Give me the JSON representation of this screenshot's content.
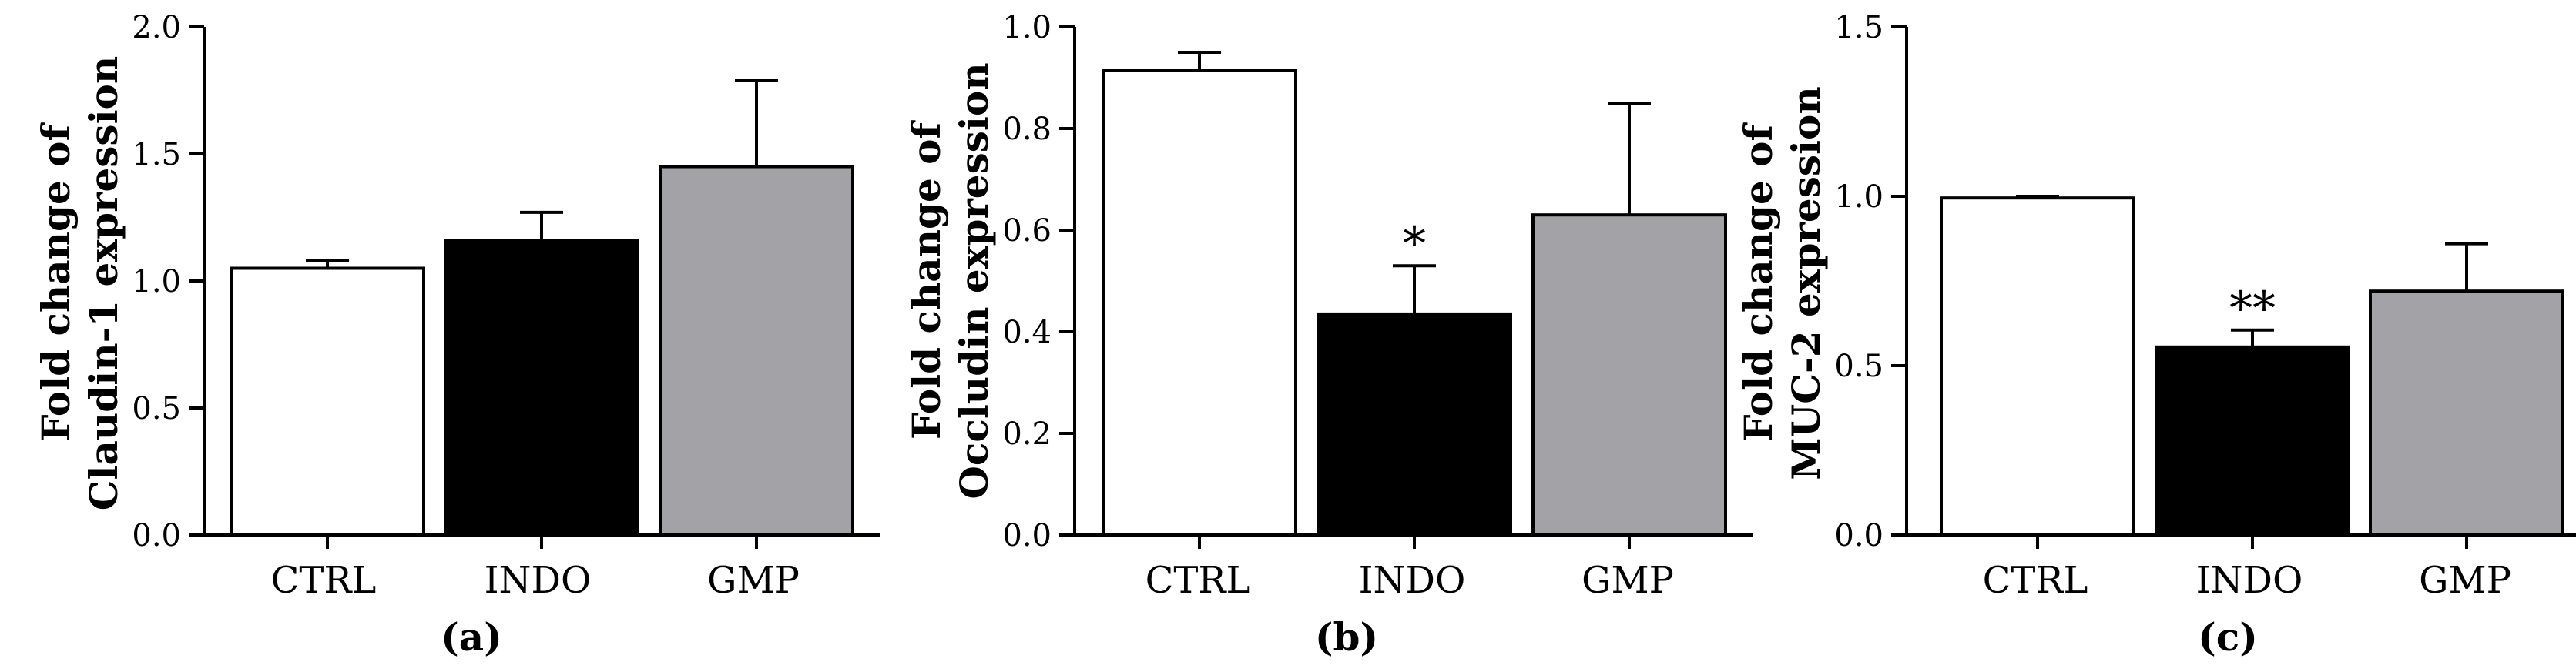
{
  "chart_data": [
    {
      "type": "bar",
      "panel": "(a)",
      "ylabel_lines": [
        "Fold change of",
        "Claudin-1 expression"
      ],
      "categories": [
        "CTRL",
        "INDO",
        "GMP"
      ],
      "values": [
        1.05,
        1.16,
        1.45
      ],
      "errors": [
        0.03,
        0.11,
        0.34
      ],
      "colors": [
        "#ffffff",
        "#000000",
        "#a3a2a7"
      ],
      "significance": [
        "",
        "",
        ""
      ],
      "ylim": [
        0,
        2.0
      ],
      "yticks": [
        "0.0",
        "0.5",
        "1.0",
        "1.5",
        "2.0"
      ]
    },
    {
      "type": "bar",
      "panel": "(b)",
      "ylabel_lines": [
        "Fold change of",
        "Occludin expression"
      ],
      "categories": [
        "CTRL",
        "INDO",
        "GMP"
      ],
      "values": [
        0.915,
        0.435,
        0.63
      ],
      "errors": [
        0.035,
        0.095,
        0.22
      ],
      "colors": [
        "#ffffff",
        "#000000",
        "#a3a2a7"
      ],
      "significance": [
        "",
        "*",
        ""
      ],
      "ylim": [
        0,
        1.0
      ],
      "yticks": [
        "0.0",
        "0.2",
        "0.4",
        "0.6",
        "0.8",
        "1.0"
      ]
    },
    {
      "type": "bar",
      "panel": "(c)",
      "ylabel_lines": [
        "Fold change of",
        "MUC-2 expression"
      ],
      "categories": [
        "CTRL",
        "INDO",
        "GMP"
      ],
      "values": [
        0.995,
        0.555,
        0.72
      ],
      "errors": [
        0.005,
        0.05,
        0.14
      ],
      "colors": [
        "#ffffff",
        "#000000",
        "#a3a2a7"
      ],
      "significance": [
        "",
        "**",
        ""
      ],
      "ylim": [
        0,
        1.5
      ],
      "yticks": [
        "0.0",
        "0.5",
        "1.0",
        "1.5"
      ]
    }
  ]
}
